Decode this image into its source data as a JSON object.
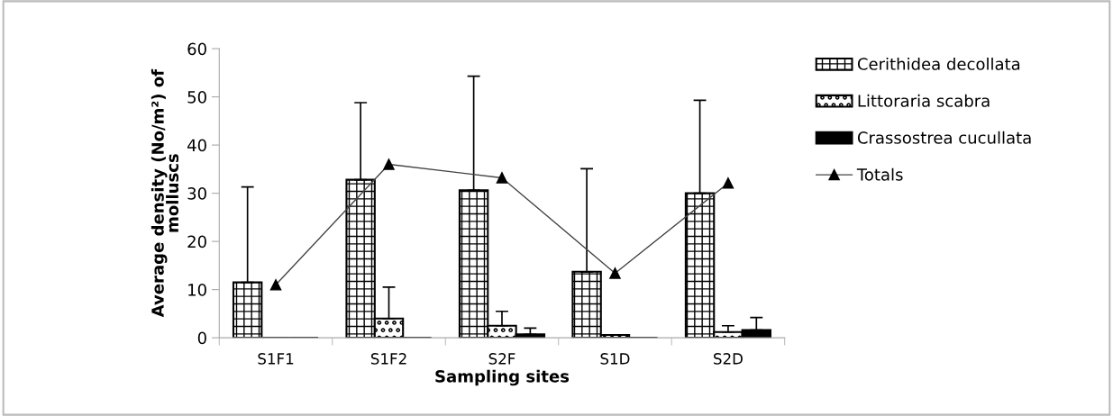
{
  "chart_data": {
    "type": "bar",
    "xlabel": "Sampling sites",
    "ylabel": "Average density (No/m²) of\nmolluscs",
    "categories": [
      "S1F1",
      "S1F2",
      "S2F",
      "S1D",
      "S2D"
    ],
    "series": [
      {
        "name": "Cerithidea decollata",
        "color": "#000000",
        "values": [
          11.5,
          32.8,
          30.6,
          13.7,
          30.0
        ],
        "errors": [
          [
            11.5,
            31.3
          ],
          [
            32.8,
            48.8
          ],
          [
            30.6,
            54.3
          ],
          [
            13.7,
            35.1
          ],
          [
            30.0,
            49.3
          ]
        ]
      },
      {
        "name": "Littoraria scabra",
        "color": "#000000",
        "values": [
          0,
          4.0,
          2.5,
          0.6,
          1.2
        ],
        "errors": [
          null,
          [
            4.0,
            10.5
          ],
          [
            2.5,
            5.5
          ],
          null,
          [
            1.2,
            2.5
          ]
        ]
      },
      {
        "name": "Crassostrea cucullata",
        "color": "#000000",
        "values": [
          0,
          0,
          0.7,
          0,
          1.6
        ],
        "errors": [
          null,
          null,
          [
            0.7,
            2.0
          ],
          null,
          [
            1.6,
            4.2
          ]
        ]
      },
      {
        "name": "Totals",
        "type": "line",
        "color": "#000000",
        "marker": "triangle",
        "values": [
          11.0,
          36.0,
          33.2,
          13.4,
          32.1
        ]
      }
    ],
    "ylim": [
      0,
      60
    ],
    "yticks": [
      0,
      10,
      20,
      30,
      40,
      50,
      60
    ],
    "grid": false,
    "legend": "right"
  }
}
